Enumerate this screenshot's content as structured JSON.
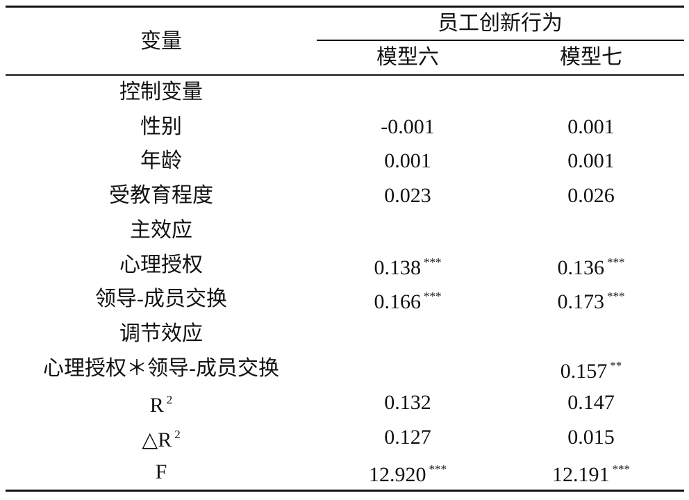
{
  "table": {
    "header": {
      "variable": "变量",
      "group": "员工创新行为",
      "columns": [
        "模型六",
        "模型七"
      ]
    },
    "rows": [
      {
        "label": "控制变量",
        "cells": [
          null,
          null
        ]
      },
      {
        "label": "性别",
        "cells": [
          {
            "value": "-0.001"
          },
          {
            "value": "0.001"
          }
        ]
      },
      {
        "label": "年龄",
        "cells": [
          {
            "value": "0.001"
          },
          {
            "value": "0.001"
          }
        ]
      },
      {
        "label": "受教育程度",
        "cells": [
          {
            "value": "0.023"
          },
          {
            "value": "0.026"
          }
        ]
      },
      {
        "label": "主效应",
        "cells": [
          null,
          null
        ]
      },
      {
        "label": "心理授权",
        "cells": [
          {
            "value": "0.138",
            "sig": "***"
          },
          {
            "value": "0.136",
            "sig": "***"
          }
        ]
      },
      {
        "label": "领导-成员交换",
        "cells": [
          {
            "value": "0.166",
            "sig": "***"
          },
          {
            "value": "0.173",
            "sig": "***"
          }
        ]
      },
      {
        "label": "调节效应",
        "cells": [
          null,
          null
        ]
      },
      {
        "label": "心理授权＊领导-成员交换",
        "cells": [
          null,
          {
            "value": "0.157",
            "sig": "**"
          }
        ]
      },
      {
        "label": "R",
        "label_sup": "2",
        "cells": [
          {
            "value": "0.132"
          },
          {
            "value": "0.147"
          }
        ]
      },
      {
        "label": "△R",
        "label_sup": "2",
        "cells": [
          {
            "value": "0.127"
          },
          {
            "value": "0.015"
          }
        ]
      },
      {
        "label": "F",
        "cells": [
          {
            "value": "12.920",
            "sig": "***"
          },
          {
            "value": "12.191",
            "sig": "***"
          }
        ]
      }
    ]
  }
}
